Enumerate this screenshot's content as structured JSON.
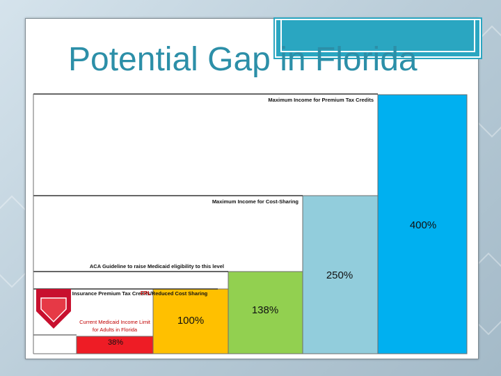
{
  "slide": {
    "title": "Potential Gap in Florida"
  },
  "chart_data": {
    "type": "bar",
    "title": "Potential Gap in Florida",
    "unit": "% of Federal Poverty Level",
    "categories": [
      "38%",
      "100%",
      "138%",
      "250%",
      "400%"
    ],
    "values": [
      38,
      100,
      138,
      250,
      400
    ],
    "colors": [
      "#ee1c25",
      "#ffc000",
      "#92d050",
      "#92cddc",
      "#00b0f0"
    ],
    "bar_labels": [
      "38%",
      "100%",
      "138%",
      "250%",
      "400%"
    ],
    "reference_lines": [
      {
        "label": "Maximum Income for Premium Tax Credits",
        "value": 400
      },
      {
        "label": "Maximum Income for Cost-Sharing",
        "value": 250
      },
      {
        "label": "ACA Guideline to raise Medicaid eligibility to this level",
        "value": 138
      },
      {
        "label": "Cut-off for Insurance Premium Tax Credits/Reduced Cost Sharing",
        "value": 100
      }
    ],
    "annotations": {
      "fpl": "FPL",
      "medicaid_limit": "Current Medicaid Income Limit for Adults in Florida"
    },
    "ylim": [
      0,
      400
    ],
    "grid": false
  }
}
